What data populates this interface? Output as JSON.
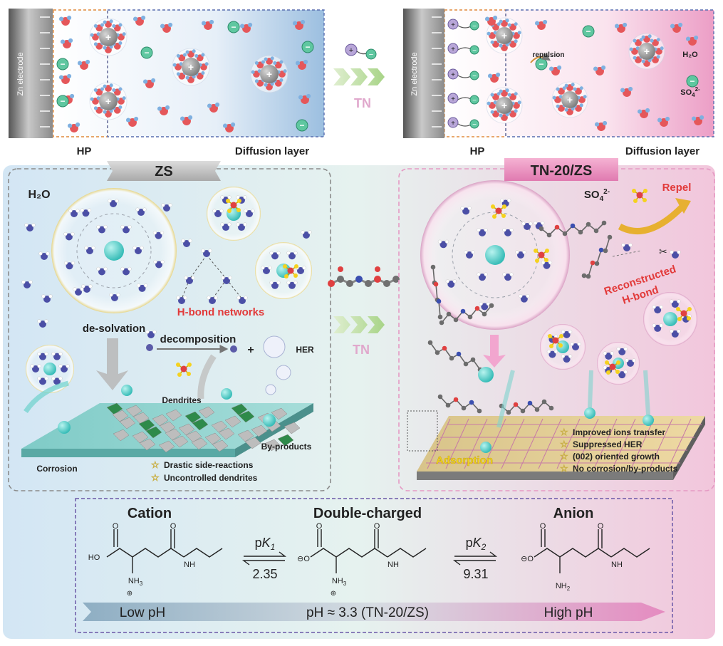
{
  "top_left": {
    "electrode_label": "Zn electrode",
    "hp_label": "HP",
    "diffusion_label": "Diffusion layer"
  },
  "top_arrow": {
    "label": "TN"
  },
  "top_right": {
    "electrode_label": "Zn electrode",
    "hp_label": "HP",
    "diffusion_label": "Diffusion layer",
    "repulsion_label": "repulsion",
    "legend_water": "H₂O",
    "legend_sulfate_base": "SO",
    "legend_sulfate_sub": "4",
    "legend_sulfate_sup": "2-"
  },
  "zs_panel": {
    "title": "ZS",
    "h2o_label": "H₂O",
    "hbond_label": "H-bond networks",
    "desolvation_label": "de-solvation",
    "decomposition_label": "decomposition",
    "plus_label": "+",
    "her_label": "HER",
    "dendrites_label": "Dendrites",
    "byproducts_label": "By-products",
    "corrosion_label": "Corrosion",
    "notes": [
      "Drastic side-reactions",
      "Uncontrolled dendrites"
    ]
  },
  "middle_arrow": {
    "label": "TN"
  },
  "tn_panel": {
    "title": "TN-20/ZS",
    "sulfate_base": "SO",
    "sulfate_sub": "4",
    "sulfate_sup": "2-",
    "repel_label": "Repel",
    "reconstructed_line1": "Reconstructed",
    "reconstructed_line2": "H-bond",
    "adsorption_label": "Adsorption",
    "notes": [
      "Improved ions transfer",
      "Suppressed HER",
      "(002) oriented growth",
      "No corrosion/by-products"
    ]
  },
  "equilibrium": {
    "cation_label": "Cation",
    "double_label": "Double-charged",
    "anion_label": "Anion",
    "pk1_base": "p",
    "pk1_k": "K",
    "pk1_sub": "1",
    "pk1_value": "2.35",
    "pk2_base": "p",
    "pk2_k": "K",
    "pk2_sub": "2",
    "pk2_value": "9.31",
    "ho_label": "HO",
    "nh_label": "NH",
    "nh3_label": "NH",
    "nh3_sub": "3",
    "nh2_label": "NH",
    "nh2_sub": "2",
    "plus_charge": "⊕",
    "minus_charge": "⊖",
    "o_label": "O",
    "low_ph": "Low pH",
    "mid_ph": "pH ≈ 3.3 (TN-20/ZS)",
    "high_ph": "High pH"
  }
}
